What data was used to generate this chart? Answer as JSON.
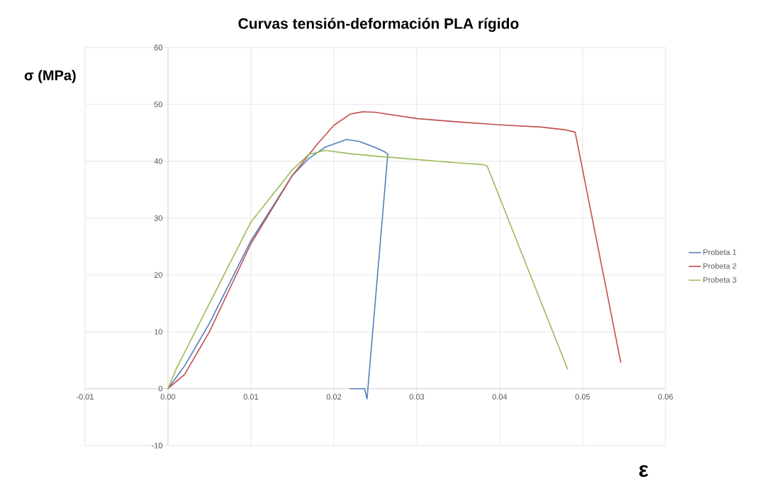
{
  "chart_data": {
    "type": "line",
    "title": "Curvas tensión-deformación PLA rígido",
    "xlabel": "ε",
    "ylabel": "σ (MPa)",
    "xlim": [
      -0.01,
      0.06
    ],
    "ylim": [
      -10,
      60
    ],
    "xticks": [
      -0.01,
      {
        "value": 0,
        "label": "0.00"
      },
      0.01,
      0.02,
      0.03,
      0.04,
      0.05,
      0.06
    ],
    "yticks": [
      -10,
      0,
      10,
      20,
      30,
      40,
      50,
      60
    ],
    "grid": true,
    "legend": "right",
    "marker": "none",
    "line_style": "solid",
    "series": [
      {
        "name": "Probeta 1",
        "color": "#4f81bd",
        "x": [
          0,
          0.002,
          0.005,
          0.01,
          0.015,
          0.017,
          0.019,
          0.0215,
          0.023,
          0.025,
          0.0262,
          0.0265,
          0.024,
          0.0237,
          0.0219
        ],
        "values": [
          0,
          4.0,
          11.5,
          26.0,
          37.5,
          40.5,
          42.5,
          43.8,
          43.5,
          42.4,
          41.6,
          41.2,
          -1.8,
          0,
          0
        ]
      },
      {
        "name": "Probeta 2",
        "color": "#c0504d",
        "x": [
          0,
          0.002,
          0.005,
          0.01,
          0.015,
          0.018,
          0.02,
          0.022,
          0.0235,
          0.025,
          0.03,
          0.035,
          0.04,
          0.045,
          0.048,
          0.0491,
          0.0546
        ],
        "values": [
          0,
          2.5,
          10.0,
          25.5,
          37.5,
          43.0,
          46.3,
          48.3,
          48.7,
          48.6,
          47.5,
          46.9,
          46.4,
          46.0,
          45.5,
          45.1,
          4.6
        ]
      },
      {
        "name": "Probeta 3",
        "color": "#9bbb59",
        "x": [
          0,
          0.001,
          0.005,
          0.01,
          0.015,
          0.017,
          0.019,
          0.022,
          0.025,
          0.03,
          0.035,
          0.038,
          0.0385,
          0.0482
        ],
        "values": [
          0,
          3.5,
          15.0,
          29.3,
          38.5,
          41.2,
          41.9,
          41.3,
          40.9,
          40.3,
          39.7,
          39.4,
          39.1,
          3.4
        ]
      }
    ]
  }
}
